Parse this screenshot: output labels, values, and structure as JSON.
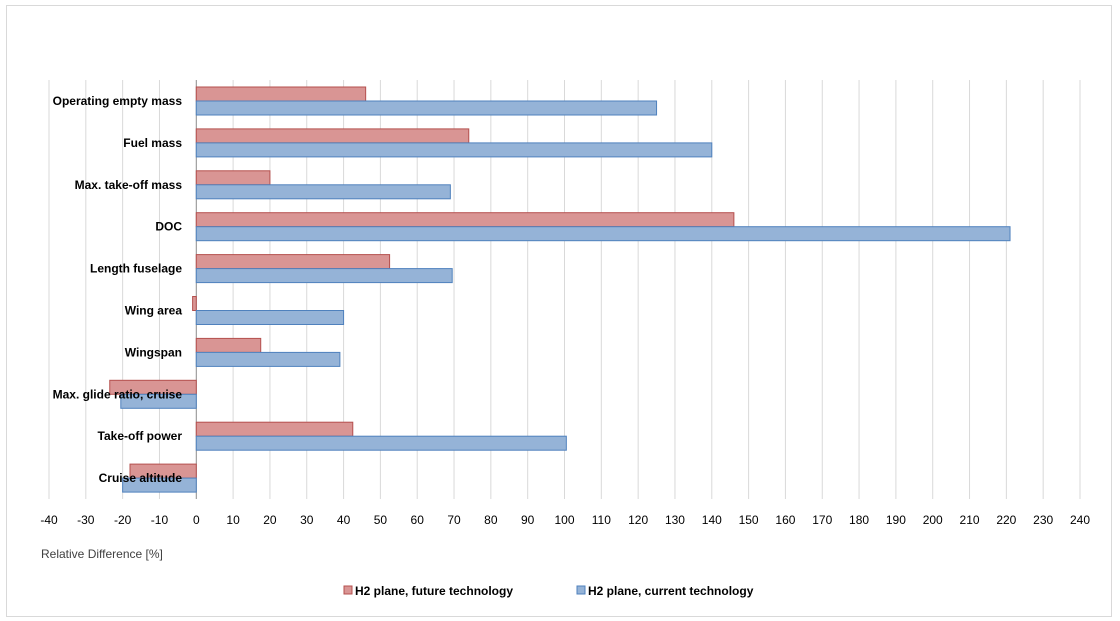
{
  "chart_data": {
    "type": "bar",
    "orientation": "horizontal",
    "title": "",
    "xlabel": "Relative Difference [%]",
    "ylabel": "",
    "xlim": [
      -40,
      240
    ],
    "x_ticks": [
      "-40",
      "-30",
      "-20",
      "-10",
      "0",
      "10",
      "20",
      "30",
      "40",
      "50",
      "60",
      "70",
      "80",
      "90",
      "100",
      "110",
      "120",
      "130",
      "140",
      "150",
      "160",
      "170",
      "180",
      "190",
      "200",
      "210",
      "220",
      "230",
      "240"
    ],
    "grid": "vertical",
    "legend_position": "bottom",
    "categories": [
      "Operating empty mass",
      "Fuel mass",
      "Max. take-off mass",
      "DOC",
      "Length fuselage",
      "Wing area",
      "Wingspan",
      "Max. glide ratio, cruise",
      "Take-off power",
      "Cruise altitude"
    ],
    "series": [
      {
        "name": "H2 plane, future technology",
        "color": "#d99594",
        "stroke": "#b5504e",
        "values": [
          46,
          74,
          20,
          146,
          52.5,
          -1,
          17.5,
          -23.5,
          42.5,
          -18
        ]
      },
      {
        "name": "H2 plane, current technology",
        "color": "#95b3d7",
        "stroke": "#4f81bd",
        "values": [
          125,
          140,
          69,
          221,
          69.5,
          40,
          39,
          -20.5,
          100.5,
          -20
        ]
      }
    ]
  }
}
